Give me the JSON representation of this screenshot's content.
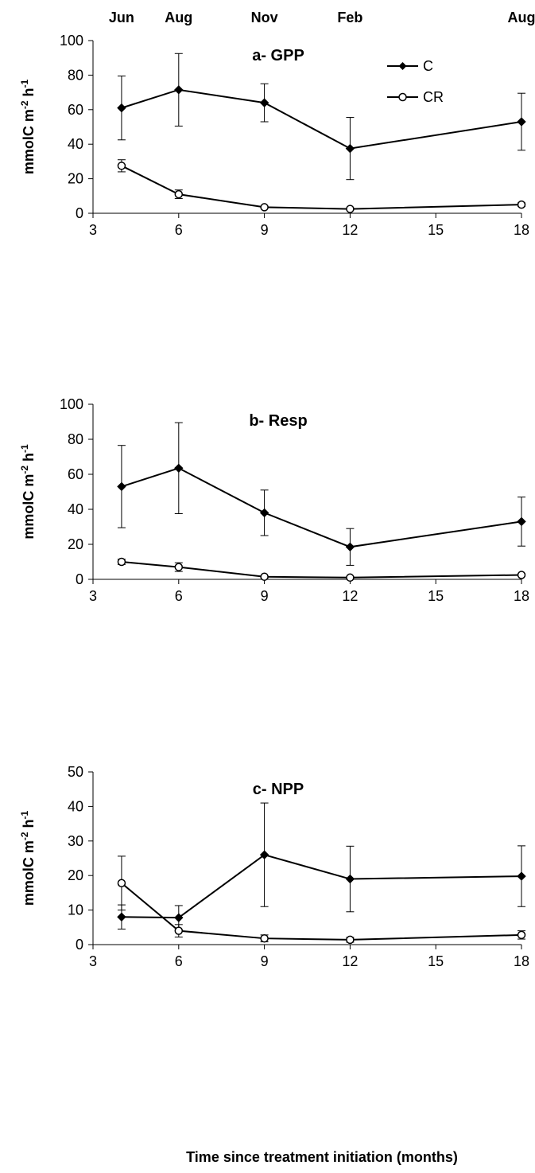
{
  "months": [
    {
      "x": 4,
      "label": "Jun"
    },
    {
      "x": 6,
      "label": "Aug"
    },
    {
      "x": 9,
      "label": "Nov"
    },
    {
      "x": 12,
      "label": "Feb"
    },
    {
      "x": 18,
      "label": "Aug"
    }
  ],
  "x_axis_label": "Time since treatment initiation (months)",
  "y_axis_label_parts": [
    "mmolC m",
    "-2",
    " h",
    "-1"
  ],
  "legend": {
    "c_label": "C",
    "cr_label": "CR"
  },
  "chart_data": [
    {
      "type": "line",
      "title": "a- GPP",
      "x": [
        4,
        6,
        9,
        12,
        18
      ],
      "xticks": [
        3,
        6,
        9,
        12,
        15,
        18
      ],
      "xlim": [
        3,
        18
      ],
      "ylim": [
        0,
        100
      ],
      "yticks": [
        0,
        20,
        40,
        60,
        80,
        100
      ],
      "series": [
        {
          "name": "C",
          "marker": "diamond",
          "values": [
            61,
            71.5,
            64,
            37.5,
            53
          ],
          "err": [
            18.5,
            21,
            11,
            18,
            16.5
          ]
        },
        {
          "name": "CR",
          "marker": "circle",
          "values": [
            27.5,
            11,
            3.5,
            2.5,
            5
          ],
          "err": [
            3.5,
            2.5,
            0.5,
            0.5,
            1
          ]
        }
      ]
    },
    {
      "type": "line",
      "title": "b- Resp",
      "x": [
        4,
        6,
        9,
        12,
        18
      ],
      "xticks": [
        3,
        6,
        9,
        12,
        15,
        18
      ],
      "xlim": [
        3,
        18
      ],
      "ylim": [
        0,
        100
      ],
      "yticks": [
        0,
        20,
        40,
        60,
        80,
        100
      ],
      "series": [
        {
          "name": "C",
          "marker": "diamond",
          "values": [
            53,
            63.5,
            38,
            18.5,
            33
          ],
          "err": [
            23.5,
            26,
            13,
            10.5,
            14
          ]
        },
        {
          "name": "CR",
          "marker": "circle",
          "values": [
            10,
            7,
            1.5,
            1,
            2.5
          ],
          "err": [
            1.5,
            2.5,
            0.5,
            0.3,
            0.5
          ]
        }
      ]
    },
    {
      "type": "line",
      "title": "c- NPP",
      "x": [
        4,
        6,
        9,
        12,
        18
      ],
      "xticks": [
        3,
        6,
        9,
        12,
        15,
        18
      ],
      "xlim": [
        3,
        18
      ],
      "ylim": [
        0,
        50
      ],
      "yticks": [
        0,
        10,
        20,
        30,
        40,
        50
      ],
      "series": [
        {
          "name": "C",
          "marker": "diamond",
          "values": [
            8,
            7.8,
            26,
            19,
            19.8
          ],
          "err": [
            3.5,
            3.5,
            15,
            9.5,
            8.8
          ]
        },
        {
          "name": "CR",
          "marker": "circle",
          "values": [
            17.8,
            4,
            1.8,
            1.4,
            2.8
          ],
          "err": [
            7.8,
            1.8,
            1,
            0.7,
            1.2
          ]
        }
      ]
    }
  ]
}
